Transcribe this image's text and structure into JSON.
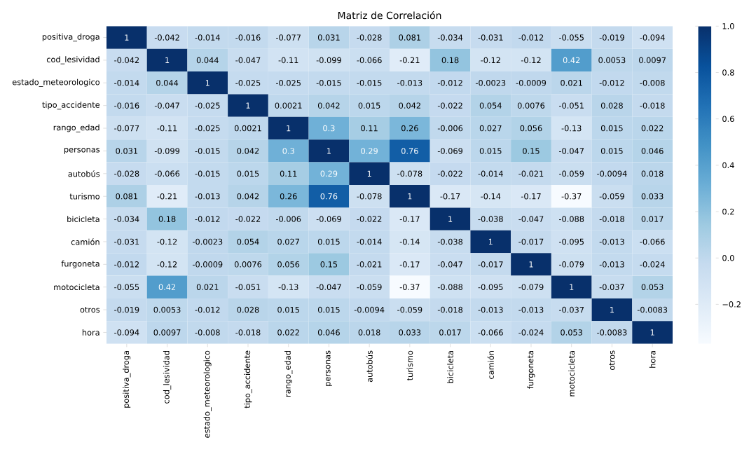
{
  "chart_data": {
    "type": "heatmap",
    "title": "Matriz de Correlación",
    "categories": [
      "positiva_droga",
      "cod_lesividad",
      "estado_meteorologico",
      "tipo_accidente",
      "rango_edad",
      "personas",
      "autobús",
      "turismo",
      "bicicleta",
      "camión",
      "furgoneta",
      "motocicleta",
      "otros",
      "hora"
    ],
    "y_categories": [
      "positiva_droga",
      "cod_lesividad",
      "estado_meteorologico",
      "tipo_accidente",
      "rango_edad",
      "personas",
      "autobús",
      "turismo",
      "bicicleta",
      "camión",
      "furgoneta",
      "motocicleta",
      "otros",
      "hora"
    ],
    "cells": [
      [
        1,
        -0.042,
        -0.014,
        -0.016,
        -0.077,
        0.031,
        -0.028,
        0.081,
        -0.034,
        -0.031,
        -0.012,
        -0.055,
        -0.019,
        -0.094
      ],
      [
        -0.042,
        1,
        0.044,
        -0.047,
        -0.11,
        -0.099,
        -0.066,
        -0.21,
        0.18,
        -0.12,
        -0.12,
        0.42,
        0.0053,
        0.0097
      ],
      [
        -0.014,
        0.044,
        1,
        -0.025,
        -0.025,
        -0.015,
        -0.015,
        -0.013,
        -0.012,
        -0.0023,
        -0.0009,
        0.021,
        -0.012,
        -0.008
      ],
      [
        -0.016,
        -0.047,
        -0.025,
        1,
        0.0021,
        0.042,
        0.015,
        0.042,
        -0.022,
        0.054,
        0.0076,
        -0.051,
        0.028,
        -0.018
      ],
      [
        -0.077,
        -0.11,
        -0.025,
        0.0021,
        1,
        0.3,
        0.11,
        0.26,
        -0.006,
        0.027,
        0.056,
        -0.13,
        0.015,
        0.022
      ],
      [
        0.031,
        -0.099,
        -0.015,
        0.042,
        0.3,
        1,
        0.29,
        0.76,
        -0.069,
        0.015,
        0.15,
        -0.047,
        0.015,
        0.046
      ],
      [
        -0.028,
        -0.066,
        -0.015,
        0.015,
        0.11,
        0.29,
        1,
        -0.078,
        -0.022,
        -0.014,
        -0.021,
        -0.059,
        -0.0094,
        0.018
      ],
      [
        0.081,
        -0.21,
        -0.013,
        0.042,
        0.26,
        0.76,
        -0.078,
        1,
        -0.17,
        -0.14,
        -0.17,
        -0.37,
        -0.059,
        0.033
      ],
      [
        -0.034,
        0.18,
        -0.012,
        -0.022,
        -0.006,
        -0.069,
        -0.022,
        -0.17,
        1,
        -0.038,
        -0.047,
        -0.088,
        -0.018,
        0.017
      ],
      [
        -0.031,
        -0.12,
        -0.0023,
        0.054,
        0.027,
        0.015,
        -0.014,
        -0.14,
        -0.038,
        1,
        -0.017,
        -0.095,
        -0.013,
        -0.066
      ],
      [
        -0.012,
        -0.12,
        -0.0009,
        0.0076,
        0.056,
        0.15,
        -0.021,
        -0.17,
        -0.047,
        -0.017,
        1,
        -0.079,
        -0.013,
        -0.024
      ],
      [
        -0.055,
        0.42,
        0.021,
        -0.051,
        -0.13,
        -0.047,
        -0.059,
        -0.37,
        -0.088,
        -0.095,
        -0.079,
        1,
        -0.037,
        0.053
      ],
      [
        -0.019,
        0.0053,
        -0.012,
        0.028,
        0.015,
        0.015,
        -0.0094,
        -0.059,
        -0.018,
        -0.013,
        -0.013,
        -0.037,
        1,
        -0.0083
      ],
      [
        -0.094,
        0.0097,
        -0.008,
        -0.018,
        0.022,
        0.046,
        0.018,
        0.033,
        0.017,
        -0.066,
        -0.024,
        0.053,
        -0.0083,
        1
      ]
    ],
    "data_labels": true,
    "clim": [
      -0.37,
      1
    ],
    "cticks": [
      {
        "value": -0.2,
        "label": "−0.2"
      },
      {
        "value": 0,
        "label": "0.0"
      },
      {
        "value": 0.2,
        "label": "0.2"
      },
      {
        "value": 0.4,
        "label": "0.4"
      },
      {
        "value": 0.6,
        "label": "0.6"
      },
      {
        "value": 0.8,
        "label": "0.8"
      },
      {
        "value": 1,
        "label": "1.0"
      }
    ]
  }
}
